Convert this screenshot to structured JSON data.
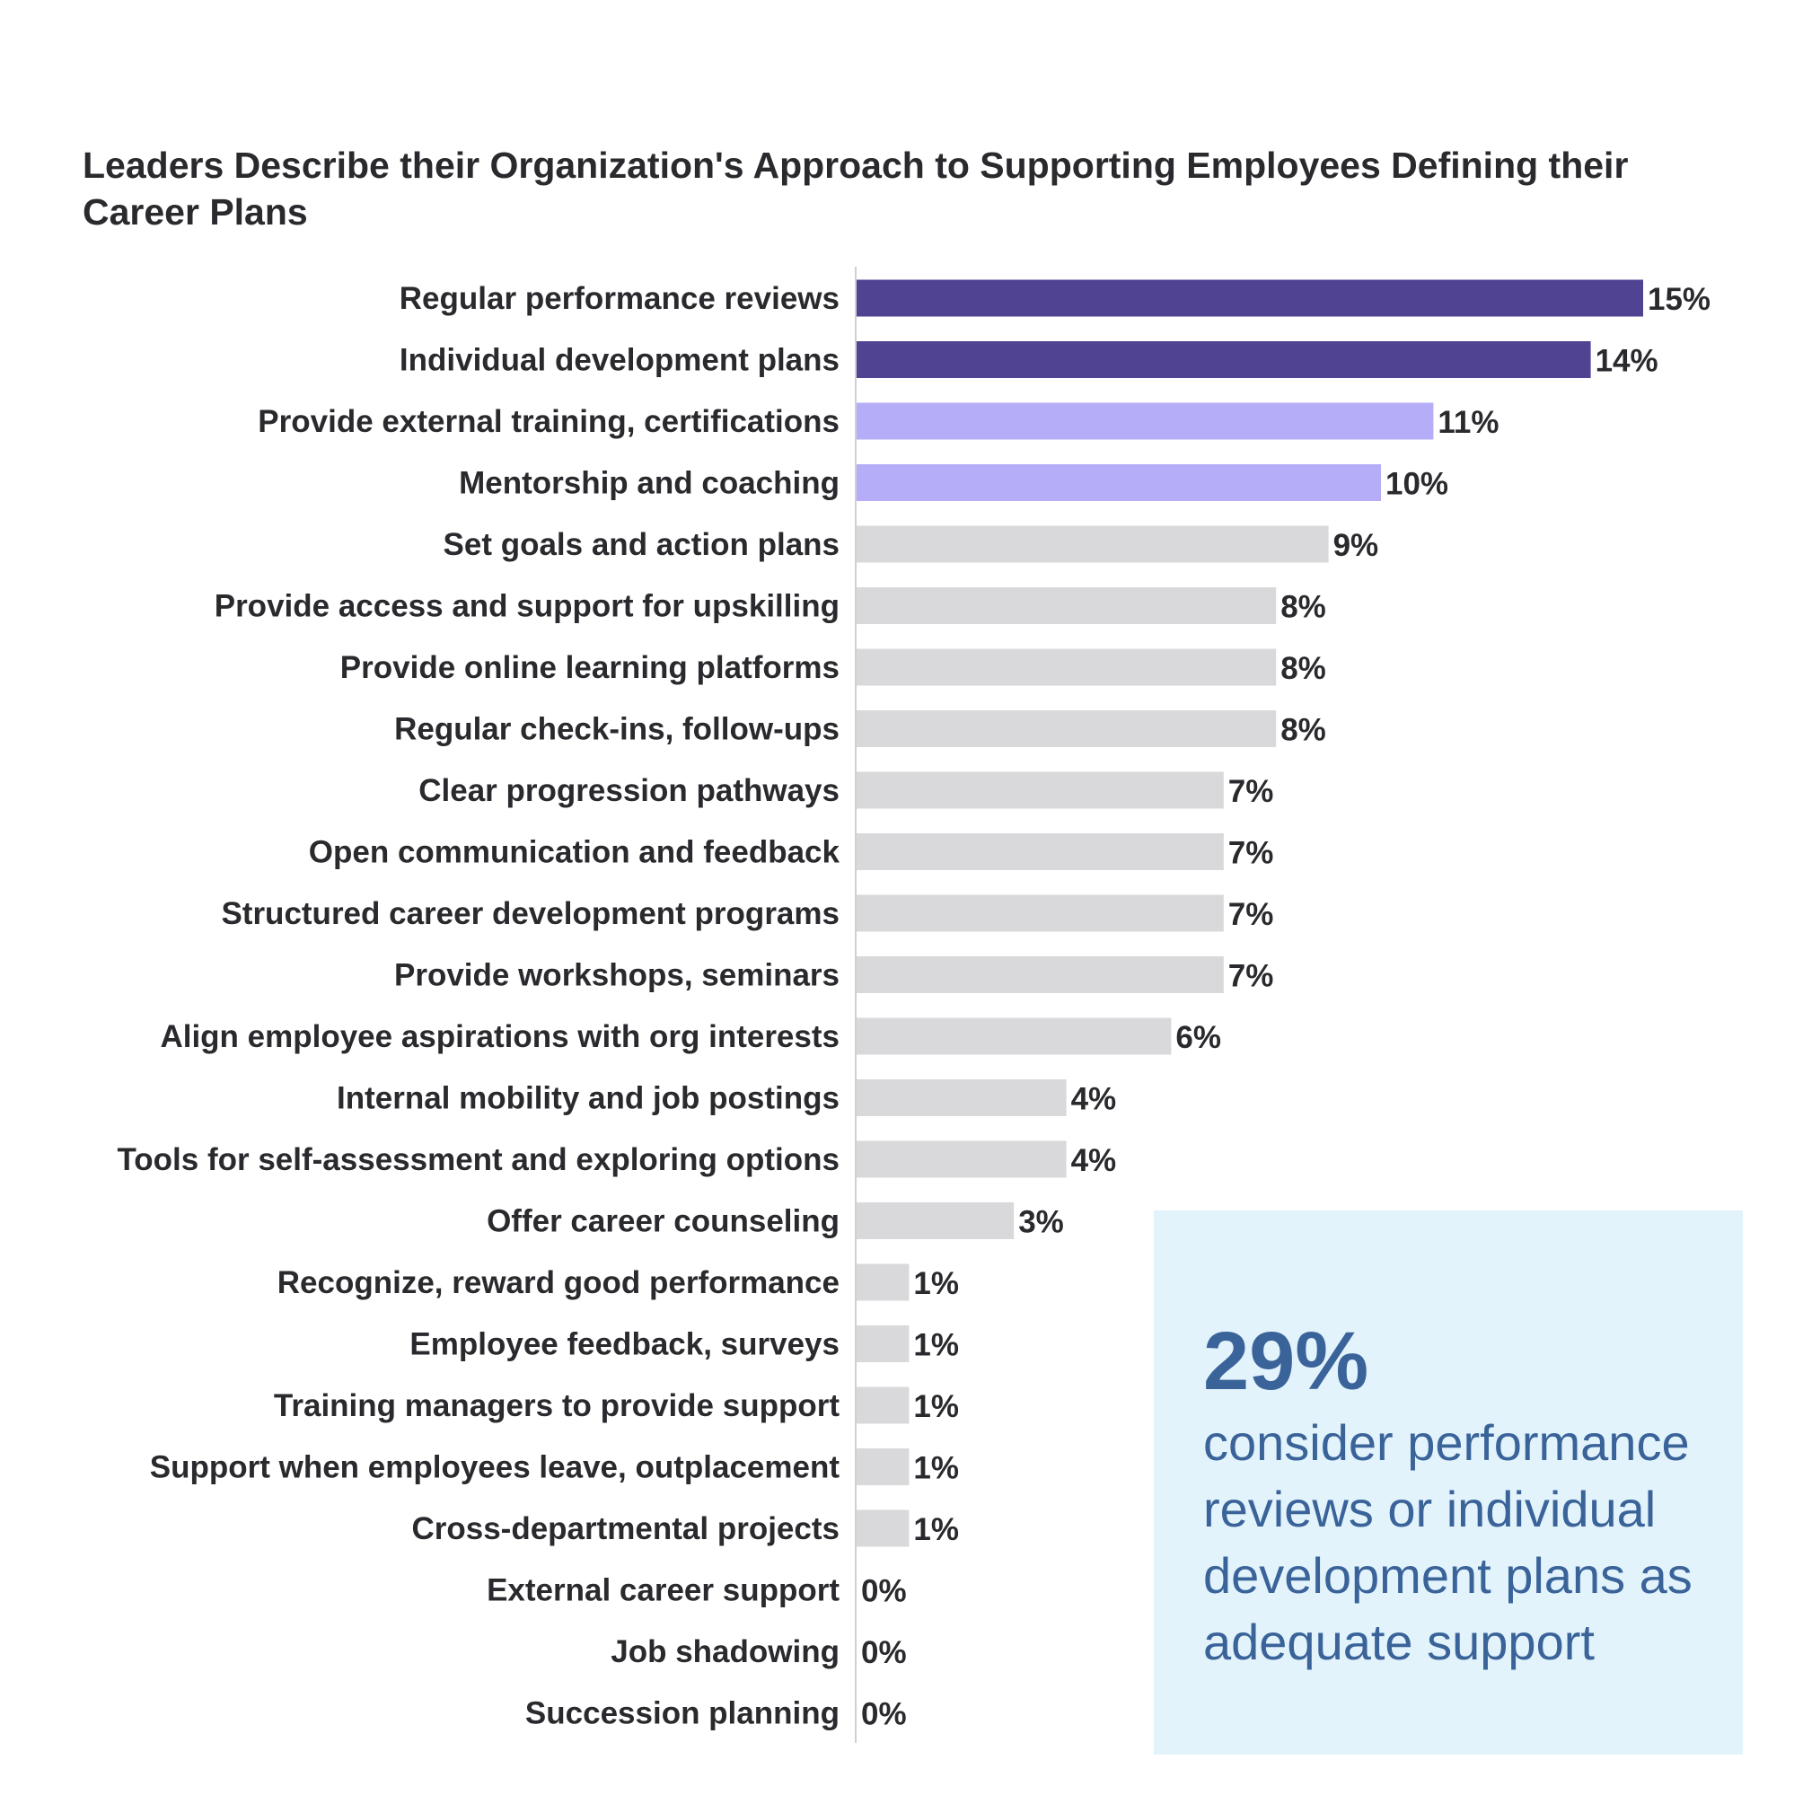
{
  "chart_data": {
    "type": "bar",
    "orientation": "horizontal",
    "title": "Leaders Describe their Organization's Approach to Supporting Employees Defining their Career Plans",
    "xlabel": "",
    "ylabel": "",
    "xlim": [
      0,
      15
    ],
    "grid": false,
    "categories": [
      "Regular performance reviews",
      "Individual development plans",
      "Provide external training, certifications",
      "Mentorship and coaching",
      "Set goals and action plans",
      "Provide access and support for upskilling",
      "Provide online learning platforms",
      "Regular check-ins, follow-ups",
      "Clear progression pathways",
      "Open communication and feedback",
      "Structured career development programs",
      "Provide workshops, seminars",
      "Align employee aspirations with org interests",
      "Internal mobility and job postings",
      "Tools for self-assessment and exploring options",
      "Offer career counseling",
      "Recognize, reward good performance",
      "Employee feedback, surveys",
      "Training managers to provide support",
      "Support when employees leave, outplacement",
      "Cross-departmental projects",
      "External career support",
      "Job shadowing",
      "Succession planning"
    ],
    "values": [
      15,
      14,
      11,
      10,
      9,
      8,
      8,
      8,
      7,
      7,
      7,
      7,
      6,
      4,
      4,
      3,
      1,
      1,
      1,
      1,
      1,
      0,
      0,
      0
    ],
    "value_labels": [
      "15%",
      "14%",
      "11%",
      "10%",
      "9%",
      "8%",
      "8%",
      "8%",
      "7%",
      "7%",
      "7%",
      "7%",
      "6%",
      "4%",
      "4%",
      "3%",
      "1%",
      "1%",
      "1%",
      "1%",
      "1%",
      "0%",
      "0%",
      "0%"
    ],
    "bar_colors": [
      "#4f4392",
      "#4f4392",
      "#b5adf7",
      "#b5adf7",
      "#d9d9dc",
      "#d9d9dc",
      "#d9d9dc",
      "#d9d9dc",
      "#d9d9dc",
      "#d9d9dc",
      "#d9d9dc",
      "#d9d9dc",
      "#d9d9dc",
      "#d9d9dc",
      "#d9d9dc",
      "#d9d9dc",
      "#d9d9dc",
      "#d9d9dc",
      "#d9d9dc",
      "#d9d9dc",
      "#d9d9dc",
      "#d9d9dc",
      "#d9d9dc",
      "#d9d9dc"
    ]
  },
  "callout": {
    "stat": "29%",
    "text": "consider performance reviews or individual development plans as adequate support",
    "background": "#e2f3fb",
    "color": "#3a6399"
  }
}
